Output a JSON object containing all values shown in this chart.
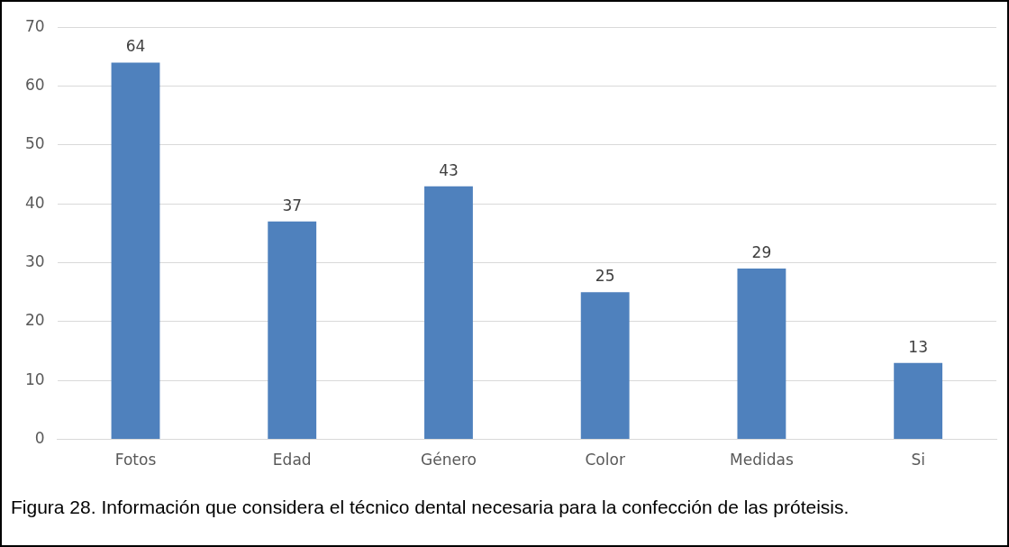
{
  "chart_data": {
    "type": "bar",
    "categories": [
      "Fotos",
      "Edad",
      "Género",
      "Color",
      "Medidas",
      "Si"
    ],
    "values": [
      64,
      37,
      43,
      25,
      29,
      13
    ],
    "color": "#4f81bd",
    "ylim": [
      0,
      70
    ],
    "yticks": [
      0,
      10,
      20,
      30,
      40,
      50,
      60,
      70
    ],
    "grid": "y",
    "data_labels": true,
    "annotations": [
      "Figura 28. Información que considera el técnico dental necesaria para la confección de las próteisis."
    ]
  }
}
